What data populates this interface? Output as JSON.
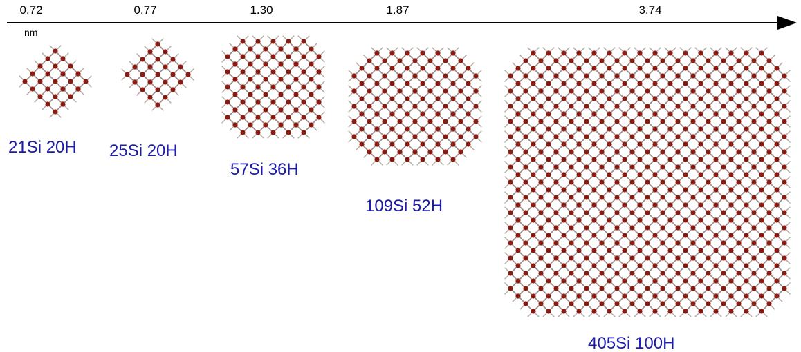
{
  "axis": {
    "unit": "nm"
  },
  "structures": [
    {
      "diameter": "0.72",
      "label": "21Si 20H"
    },
    {
      "diameter": "0.77",
      "label": "25Si 20H"
    },
    {
      "diameter": "1.30",
      "label": "57Si 36H"
    },
    {
      "diameter": "1.87",
      "label": "109Si 52H"
    },
    {
      "diameter": "3.74",
      "label": "405Si 100H"
    }
  ]
}
